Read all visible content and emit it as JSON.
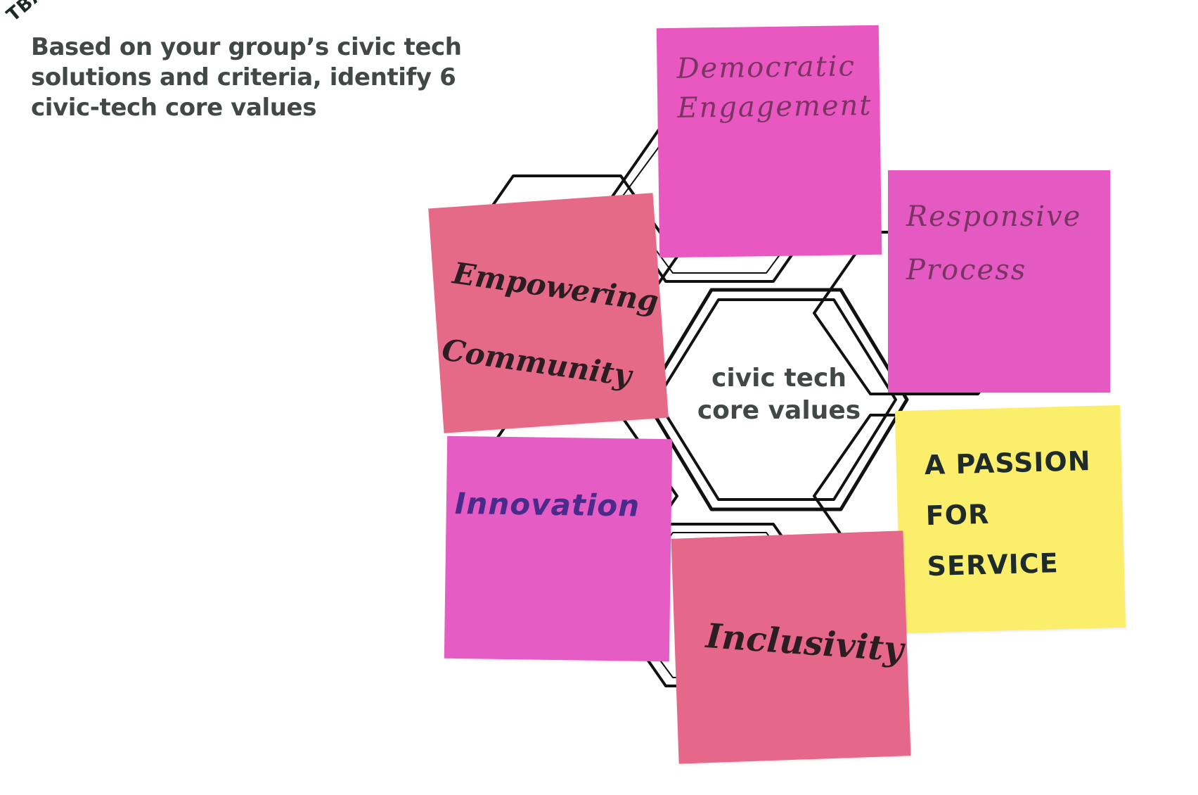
{
  "corner_note": "TBA",
  "prompt": {
    "text": "Based on your group’s civic tech\nsolutions and criteria, identify 6\ncivic-tech core values"
  },
  "center_hexagon": {
    "label": "civic tech\ncore values"
  },
  "sticky_notes": [
    {
      "text": "Democratic\nEngagement",
      "color": "#e858c0",
      "ink": "#7a3463"
    },
    {
      "text": "Responsive\nProcess",
      "color": "#e45ac2",
      "ink": "#7a3463"
    },
    {
      "text": "Empowering\nCommunity",
      "color": "#e56a88",
      "ink": "#2c1d22"
    },
    {
      "text": "A PASSION\nFOR\nSERVICE",
      "color": "#fbee6a",
      "ink": "#1f2b29"
    },
    {
      "text": "Innovation",
      "color": "#e45cc4",
      "ink": "#4a2a8a"
    },
    {
      "text": "Inclusivity",
      "color": "#e5678a",
      "ink": "#2c1d22"
    }
  ]
}
